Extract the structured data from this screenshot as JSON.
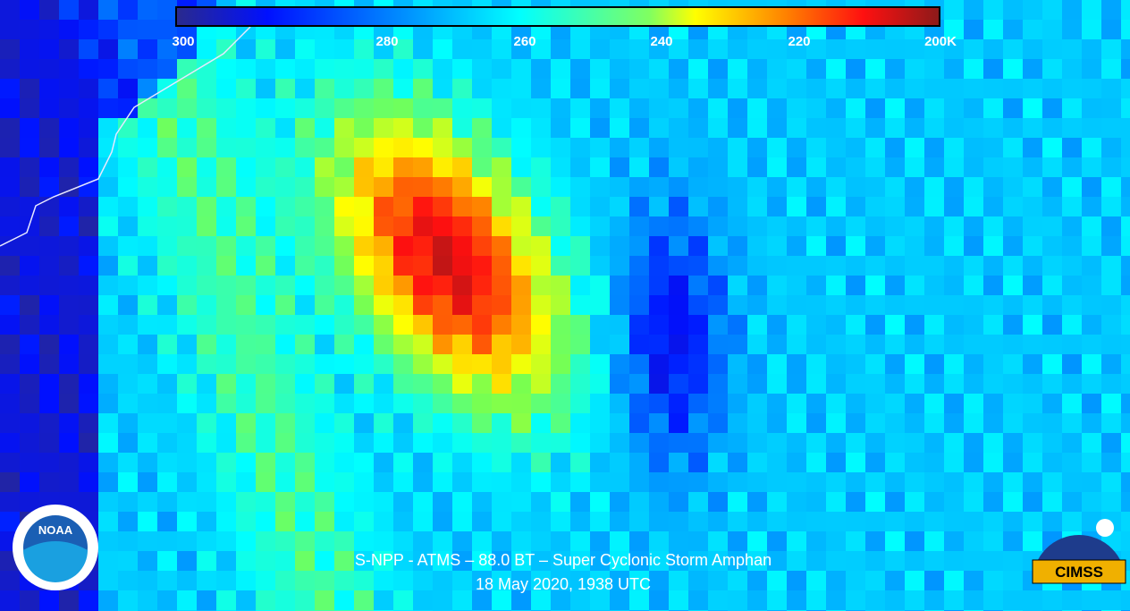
{
  "colorbar": {
    "labels": [
      "300",
      "280",
      "260",
      "240",
      "220",
      "200K"
    ]
  },
  "caption": {
    "line1": "S-NPP - ATMS – 88.0 BT – Super Cyclonic Storm Amphan",
    "line2": "18 May 2020, 1938 UTC"
  },
  "logos": {
    "noaa": "NOAA",
    "cimss": "CIMSS"
  }
}
